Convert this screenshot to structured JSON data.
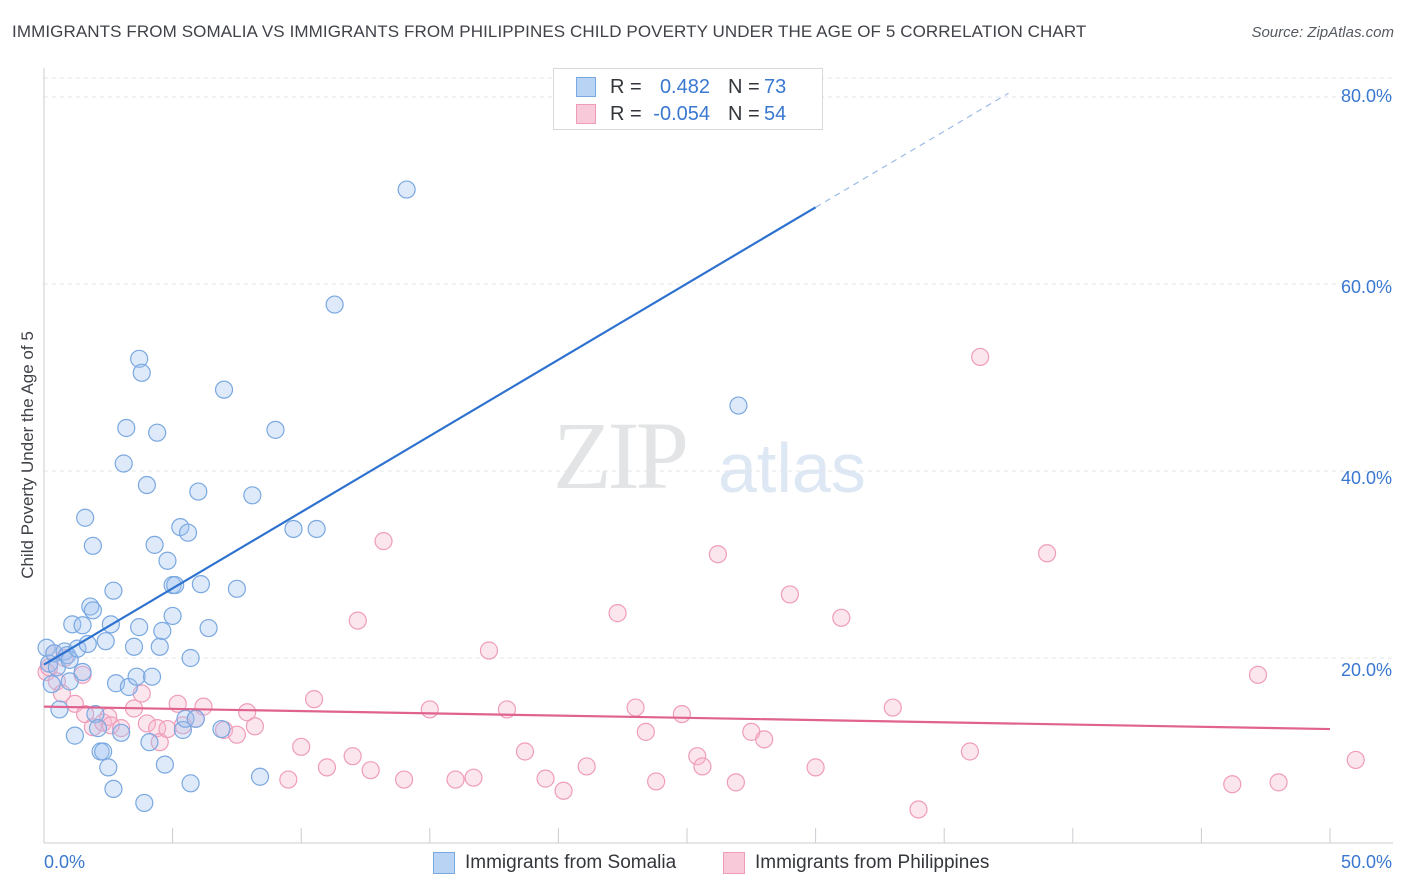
{
  "title": "IMMIGRANTS FROM SOMALIA VS IMMIGRANTS FROM PHILIPPINES CHILD POVERTY UNDER THE AGE OF 5 CORRELATION CHART",
  "source": "Source: ZipAtlas.com",
  "watermark": {
    "zip": "ZIP",
    "atlas": "atlas"
  },
  "colors": {
    "blue_fill": "rgba(160,196,240,0.35)",
    "blue_stroke": "#7aa8e0",
    "blue_line": "#2e72cf",
    "pink_fill": "rgba(246,182,205,0.35)",
    "pink_stroke": "#ef9cba",
    "pink_line": "#e0628f",
    "grid": "#e2e4e7",
    "tick_text": "#3a78d0"
  },
  "legend": {
    "rows": [
      {
        "r_label": "R =",
        "r_value": "0.482",
        "n_label": "N =",
        "n_value": "73"
      },
      {
        "r_label": "R =",
        "r_value": "-0.054",
        "n_label": "N =",
        "n_value": "54"
      }
    ],
    "bottom": [
      "Immigrants from Somalia",
      "Immigrants from Philippines"
    ]
  },
  "axis": {
    "x_min_label": "0.0%",
    "x_max_label": "50.0%",
    "y_ticks": [
      "20.0%",
      "40.0%",
      "60.0%",
      "80.0%"
    ]
  },
  "chart_data": {
    "type": "scatter",
    "title": "IMMIGRANTS FROM SOMALIA VS IMMIGRANTS FROM PHILIPPINES CHILD POVERTY UNDER THE AGE OF 5 CORRELATION CHART",
    "xlabel": "",
    "ylabel": "Child Poverty Under the Age of 5",
    "xlim": [
      0,
      52.5
    ],
    "ylim": [
      0,
      82
    ],
    "x_ticks": [
      0,
      5,
      10,
      15,
      20,
      25,
      30,
      35,
      40,
      45,
      50
    ],
    "y_ticks": [
      20,
      40,
      60,
      80
    ],
    "series": [
      {
        "name": "Immigrants from Somalia",
        "R": 0.482,
        "N": 73,
        "trend": {
          "x": [
            0,
            30
          ],
          "y": [
            19.3,
            68.2
          ],
          "dashed_x": [
            30,
            37.5
          ],
          "dashed_y": [
            68.2,
            80.4
          ]
        },
        "points": [
          [
            0.1,
            21.1
          ],
          [
            0.2,
            19.4
          ],
          [
            0.3,
            17.2
          ],
          [
            0.4,
            20.5
          ],
          [
            0.5,
            19.0
          ],
          [
            0.6,
            14.5
          ],
          [
            0.8,
            20.7
          ],
          [
            0.9,
            20.3
          ],
          [
            1.0,
            17.5
          ],
          [
            1.0,
            19.8
          ],
          [
            1.1,
            23.6
          ],
          [
            1.2,
            11.7
          ],
          [
            1.3,
            21.0
          ],
          [
            1.5,
            23.5
          ],
          [
            1.5,
            18.5
          ],
          [
            1.6,
            35.0
          ],
          [
            1.7,
            21.5
          ],
          [
            1.8,
            25.5
          ],
          [
            1.9,
            25.1
          ],
          [
            1.9,
            32.0
          ],
          [
            2.0,
            14.0
          ],
          [
            2.1,
            12.5
          ],
          [
            2.2,
            10.0
          ],
          [
            2.3,
            10.0
          ],
          [
            2.4,
            21.8
          ],
          [
            2.5,
            8.3
          ],
          [
            2.6,
            23.6
          ],
          [
            2.7,
            6.0
          ],
          [
            2.7,
            27.2
          ],
          [
            2.8,
            17.3
          ],
          [
            3.0,
            12.0
          ],
          [
            3.1,
            40.8
          ],
          [
            3.2,
            44.6
          ],
          [
            3.3,
            16.9
          ],
          [
            3.5,
            21.2
          ],
          [
            3.6,
            18.0
          ],
          [
            3.7,
            23.3
          ],
          [
            3.7,
            52.0
          ],
          [
            3.8,
            50.5
          ],
          [
            3.9,
            4.5
          ],
          [
            4.0,
            38.5
          ],
          [
            4.1,
            11.0
          ],
          [
            4.2,
            18.0
          ],
          [
            4.3,
            32.1
          ],
          [
            4.4,
            44.1
          ],
          [
            4.5,
            21.2
          ],
          [
            4.6,
            22.9
          ],
          [
            4.7,
            8.6
          ],
          [
            4.8,
            30.4
          ],
          [
            5.0,
            24.5
          ],
          [
            5.0,
            27.8
          ],
          [
            5.1,
            27.8
          ],
          [
            5.3,
            34.0
          ],
          [
            5.4,
            12.3
          ],
          [
            5.5,
            13.5
          ],
          [
            5.6,
            33.4
          ],
          [
            5.7,
            20.0
          ],
          [
            5.7,
            6.6
          ],
          [
            5.9,
            13.5
          ],
          [
            6.0,
            37.8
          ],
          [
            6.1,
            27.9
          ],
          [
            6.4,
            23.2
          ],
          [
            6.9,
            12.4
          ],
          [
            7.0,
            48.7
          ],
          [
            7.5,
            27.4
          ],
          [
            8.1,
            37.4
          ],
          [
            8.4,
            7.3
          ],
          [
            9.0,
            44.4
          ],
          [
            9.7,
            33.8
          ],
          [
            10.6,
            33.8
          ],
          [
            11.3,
            57.8
          ],
          [
            14.1,
            70.1
          ],
          [
            27.0,
            47.0
          ]
        ]
      },
      {
        "name": "Immigrants from Philippines",
        "R": -0.054,
        "N": 54,
        "trend": {
          "x": [
            0,
            50
          ],
          "y": [
            14.8,
            12.4
          ]
        },
        "points": [
          [
            0.1,
            18.5
          ],
          [
            0.2,
            19.0
          ],
          [
            0.4,
            20.5
          ],
          [
            0.5,
            17.5
          ],
          [
            0.7,
            16.2
          ],
          [
            0.8,
            20.0
          ],
          [
            1.2,
            15.1
          ],
          [
            1.5,
            18.2
          ],
          [
            1.6,
            14.0
          ],
          [
            1.9,
            12.6
          ],
          [
            2.3,
            13.1
          ],
          [
            2.5,
            13.7
          ],
          [
            2.6,
            12.8
          ],
          [
            3.0,
            12.5
          ],
          [
            3.5,
            14.6
          ],
          [
            3.8,
            16.2
          ],
          [
            4.0,
            13.0
          ],
          [
            4.4,
            12.5
          ],
          [
            4.5,
            11.0
          ],
          [
            4.8,
            12.4
          ],
          [
            5.2,
            15.1
          ],
          [
            5.4,
            12.8
          ],
          [
            5.9,
            13.5
          ],
          [
            6.2,
            14.8
          ],
          [
            7.0,
            12.3
          ],
          [
            7.5,
            11.8
          ],
          [
            7.9,
            14.2
          ],
          [
            8.2,
            12.7
          ],
          [
            9.5,
            7.0
          ],
          [
            10.0,
            10.5
          ],
          [
            10.5,
            15.6
          ],
          [
            11.0,
            8.3
          ],
          [
            12.0,
            9.5
          ],
          [
            12.2,
            24.0
          ],
          [
            12.7,
            8.0
          ],
          [
            13.2,
            32.5
          ],
          [
            14.0,
            7.0
          ],
          [
            15.0,
            14.5
          ],
          [
            16.0,
            7.0
          ],
          [
            16.7,
            7.2
          ],
          [
            17.3,
            20.8
          ],
          [
            18.0,
            14.5
          ],
          [
            18.7,
            10.0
          ],
          [
            19.5,
            7.1
          ],
          [
            20.2,
            5.8
          ],
          [
            21.1,
            8.4
          ],
          [
            22.3,
            24.8
          ],
          [
            23.0,
            14.7
          ],
          [
            23.4,
            12.1
          ],
          [
            23.8,
            6.8
          ],
          [
            24.8,
            14.0
          ],
          [
            25.4,
            9.5
          ],
          [
            25.6,
            8.4
          ],
          [
            26.2,
            31.1
          ]
        ],
        "points_extra": [
          [
            26.9,
            6.7
          ],
          [
            27.5,
            12.1
          ],
          [
            28.0,
            11.3
          ],
          [
            29.0,
            26.8
          ],
          [
            30.0,
            8.3
          ],
          [
            31.0,
            24.3
          ],
          [
            33.0,
            14.7
          ],
          [
            34.0,
            3.8
          ],
          [
            36.0,
            10.0
          ],
          [
            36.4,
            52.2
          ],
          [
            39.0,
            31.2
          ],
          [
            46.2,
            6.5
          ],
          [
            47.2,
            18.2
          ],
          [
            48.0,
            6.7
          ],
          [
            51.0,
            9.1
          ]
        ]
      }
    ]
  }
}
